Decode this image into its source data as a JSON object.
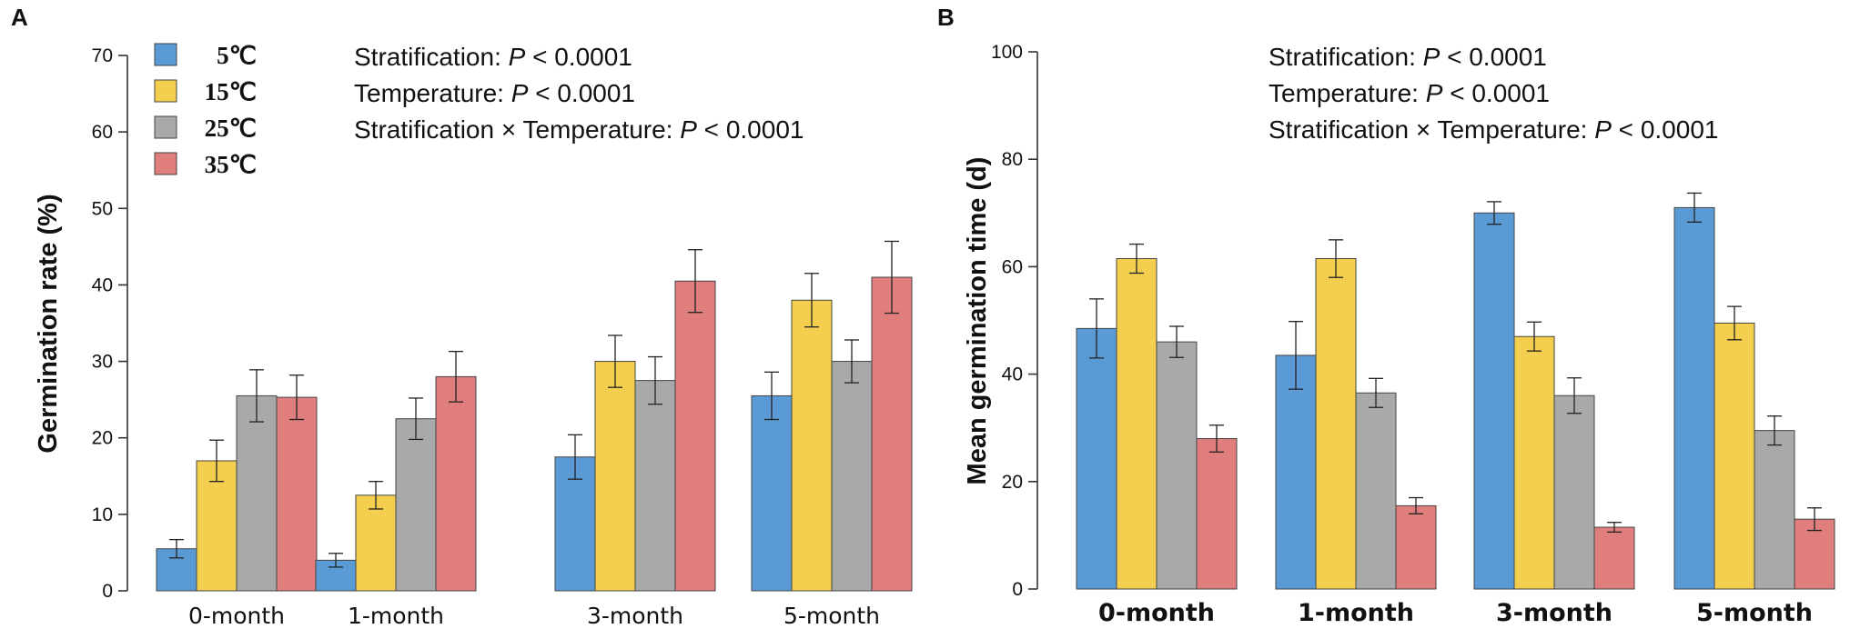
{
  "figure": {
    "colors": {
      "5": "#5b9bd5",
      "15": "#f4cf4f",
      "25": "#a9a9a9",
      "35": "#e07d7d"
    },
    "legend": {
      "items": [
        {
          "label": "5℃",
          "key": "5"
        },
        {
          "label": "15℃",
          "key": "15"
        },
        {
          "label": "25℃",
          "key": "25"
        },
        {
          "label": "35℃",
          "key": "35"
        }
      ]
    }
  },
  "chart_data": [
    {
      "panel": "A",
      "type": "bar",
      "title": "",
      "xlabel": "",
      "ylabel": "Germination rate (%)",
      "ylim": [
        0,
        70
      ],
      "yticks": [
        0,
        10,
        20,
        30,
        40,
        50,
        60,
        70
      ],
      "grid": false,
      "categories": [
        "0-month",
        "1-month",
        "3-month",
        "5-month"
      ],
      "series": [
        {
          "name": "5℃",
          "key": "5",
          "values": [
            5.5,
            4.0,
            17.5,
            25.5
          ],
          "errors": [
            1.2,
            0.9,
            2.9,
            3.1
          ]
        },
        {
          "name": "15℃",
          "key": "15",
          "values": [
            17.0,
            12.5,
            30.0,
            38.0
          ],
          "errors": [
            2.7,
            1.8,
            3.4,
            3.5
          ]
        },
        {
          "name": "25℃",
          "key": "25",
          "values": [
            25.5,
            22.5,
            27.5,
            30.0
          ],
          "errors": [
            3.4,
            2.7,
            3.1,
            2.8
          ]
        },
        {
          "name": "35℃",
          "key": "35",
          "values": [
            25.3,
            28.0,
            40.5,
            41.0
          ],
          "errors": [
            2.9,
            3.3,
            4.1,
            4.7
          ]
        }
      ],
      "annotations": [
        {
          "prefix": "Stratification: ",
          "p": "P",
          "suffix": " < 0.0001"
        },
        {
          "prefix": "Temperature: ",
          "p": "P",
          "suffix": " < 0.0001"
        },
        {
          "prefix": "Stratification × Temperature: ",
          "p": "P",
          "suffix": " < 0.0001"
        }
      ]
    },
    {
      "panel": "B",
      "type": "bar",
      "title": "",
      "xlabel": "",
      "ylabel": "Mean germination time (d)",
      "ylim": [
        0,
        100
      ],
      "yticks": [
        0,
        20,
        40,
        60,
        80,
        100
      ],
      "grid": false,
      "categories": [
        "0-month",
        "1-month",
        "3-month",
        "5-month"
      ],
      "series": [
        {
          "name": "5℃",
          "key": "5",
          "values": [
            48.5,
            43.5,
            70.0,
            71.0
          ],
          "errors": [
            5.5,
            6.3,
            2.1,
            2.7
          ]
        },
        {
          "name": "15℃",
          "key": "15",
          "values": [
            61.5,
            61.5,
            47.0,
            49.5
          ],
          "errors": [
            2.7,
            3.5,
            2.7,
            3.1
          ]
        },
        {
          "name": "25℃",
          "key": "25",
          "values": [
            46.0,
            36.5,
            36.0,
            29.5
          ],
          "errors": [
            2.9,
            2.7,
            3.3,
            2.7
          ]
        },
        {
          "name": "35℃",
          "key": "35",
          "values": [
            28.0,
            15.5,
            11.5,
            13.0
          ],
          "errors": [
            2.5,
            1.5,
            0.9,
            2.1
          ]
        }
      ],
      "annotations": [
        {
          "prefix": "Stratification: ",
          "p": "P",
          "suffix": " < 0.0001"
        },
        {
          "prefix": "Temperature: ",
          "p": "P",
          "suffix": " < 0.0001"
        },
        {
          "prefix": "Stratification × Temperature: ",
          "p": "P",
          "suffix": " < 0.0001"
        }
      ]
    }
  ]
}
